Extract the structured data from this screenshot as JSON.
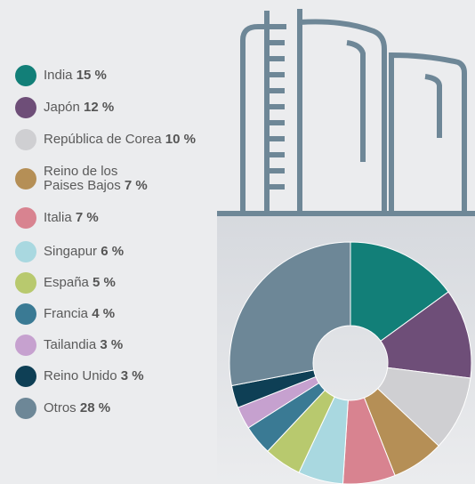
{
  "chart_data": {
    "type": "pie",
    "categories": [
      "India",
      "Japón",
      "República de Corea",
      "Reino de los Paises Bajos",
      "Italia",
      "Singapur",
      "España",
      "Francia",
      "Tailandia",
      "Reino Unido",
      "Otros"
    ],
    "values": [
      15,
      12,
      10,
      7,
      7,
      6,
      5,
      4,
      3,
      3,
      28
    ],
    "value_labels": [
      "15 %",
      "12 %",
      "10 %",
      "7 %",
      "7 %",
      "6 %",
      "5 %",
      "4 %",
      "3 %",
      "3 %",
      "28 %"
    ],
    "colors": [
      "#127f78",
      "#6e4e78",
      "#cfcfd2",
      "#b58f56",
      "#d88390",
      "#a9d8e0",
      "#b8c96e",
      "#3a7a94",
      "#c6a1cf",
      "#0e3f55",
      "#6d8797"
    ]
  }
}
